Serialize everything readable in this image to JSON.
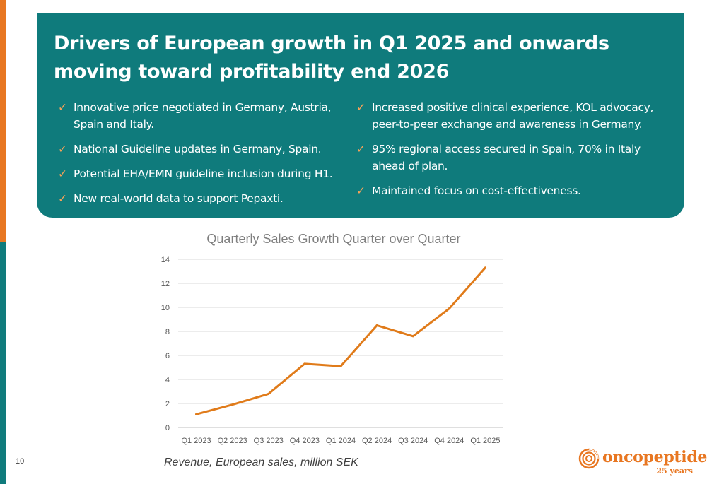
{
  "slide": {
    "title": "Drivers of European growth in Q1 2025 and onwards moving toward profitability end 2026",
    "page_number": "10",
    "caption": "Revenue, European sales, million SEK"
  },
  "bullets_left": [
    "Innovative price negotiated in Germany, Austria, Spain and Italy.",
    "National Guideline updates in Germany, Spain.",
    "Potential EHA/EMN guideline inclusion during H1.",
    "New real-world data to support Pepaxti."
  ],
  "bullets_right": [
    "Increased positive clinical experience, KOL advocacy, peer-to-peer exchange and awareness in Germany.",
    "95% regional access secured in Spain, 70% in Italy ahead of plan.",
    "Maintained focus on cost-effectiveness."
  ],
  "check_glyph": "✓",
  "logo": {
    "name": "oncopeptides",
    "tagline": "25 years"
  },
  "colors": {
    "teal": "#0f7b7c",
    "orange": "#e87722",
    "line": "#e07b1a"
  },
  "chart_data": {
    "type": "line",
    "title": "Quarterly Sales Growth Quarter over Quarter",
    "categories": [
      "Q1 2023",
      "Q2 2023",
      "Q3 2023",
      "Q4 2023",
      "Q1 2024",
      "Q2 2024",
      "Q3 2024",
      "Q4 2024",
      "Q1 2025"
    ],
    "series": [
      {
        "values": [
          1.1,
          1.9,
          2.8,
          5.3,
          5.1,
          8.5,
          7.6,
          9.9,
          13.3
        ]
      }
    ],
    "yticks": [
      0,
      2,
      4,
      6,
      8,
      10,
      12,
      14
    ],
    "ylim": [
      0,
      14
    ],
    "grid": true,
    "legend": "none"
  }
}
